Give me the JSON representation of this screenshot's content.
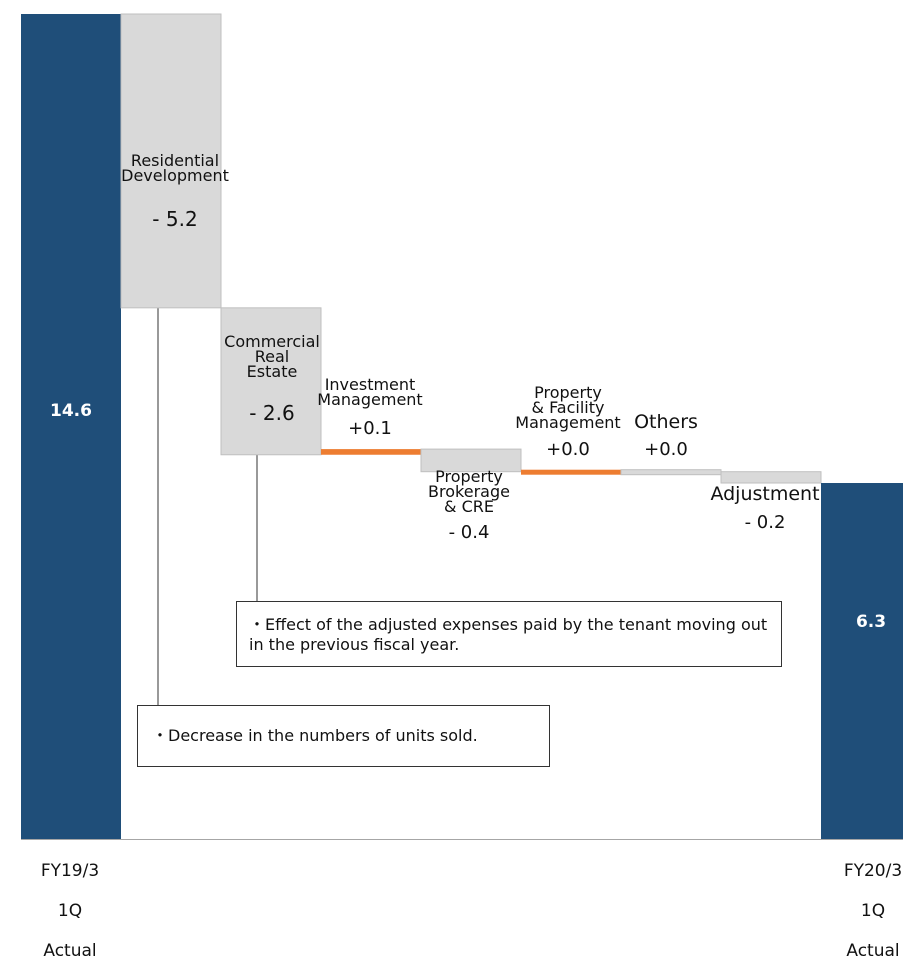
{
  "chart_data": {
    "type": "bar",
    "subtype": "waterfall",
    "title": "",
    "xlabel": "",
    "ylabel": "",
    "start": {
      "label_lines": [
        "FY19/3",
        "1Q",
        "Actual"
      ],
      "value": 14.6,
      "value_text": "14.6",
      "color": "#1f4e79"
    },
    "end": {
      "label_lines": [
        "FY20/3",
        "1Q",
        "Actual"
      ],
      "value": 6.3,
      "value_text": "6.3",
      "color": "#1f4e79"
    },
    "steps": [
      {
        "label_lines": [
          "Residential",
          "Development"
        ],
        "value": -5.2,
        "value_text": "- 5.2",
        "color": "#d9d9d9"
      },
      {
        "label_lines": [
          "Commercial",
          "Real",
          "Estate"
        ],
        "value": -2.6,
        "value_text": "- 2.6",
        "color": "#d9d9d9"
      },
      {
        "label_lines": [
          "Investment",
          "Management"
        ],
        "value": 0.1,
        "value_text": "+0.1",
        "color": "#ed7d31"
      },
      {
        "label_lines": [
          "Property",
          "Brokerage",
          "& CRE"
        ],
        "value": -0.4,
        "value_text": "- 0.4",
        "color": "#d9d9d9"
      },
      {
        "label_lines": [
          "Property",
          "& Facility",
          "Management"
        ],
        "value": 0.0,
        "value_text": "+0.0",
        "color": "#ed7d31"
      },
      {
        "label_lines": [
          "Others"
        ],
        "value": 0.0,
        "value_text": "+0.0",
        "color": "#d9d9d9"
      },
      {
        "label_lines": [
          "Adjustment"
        ],
        "value": -0.2,
        "value_text": "- 0.2",
        "color": "#d9d9d9"
      }
    ],
    "ylim": [
      0,
      14.6
    ],
    "grid": false,
    "legend": "none"
  },
  "annotations": [
    {
      "text": "・Effect of the adjusted expenses paid by the tenant moving out in the previous fiscal year."
    },
    {
      "text": "・Decrease in the numbers of units sold."
    }
  ]
}
